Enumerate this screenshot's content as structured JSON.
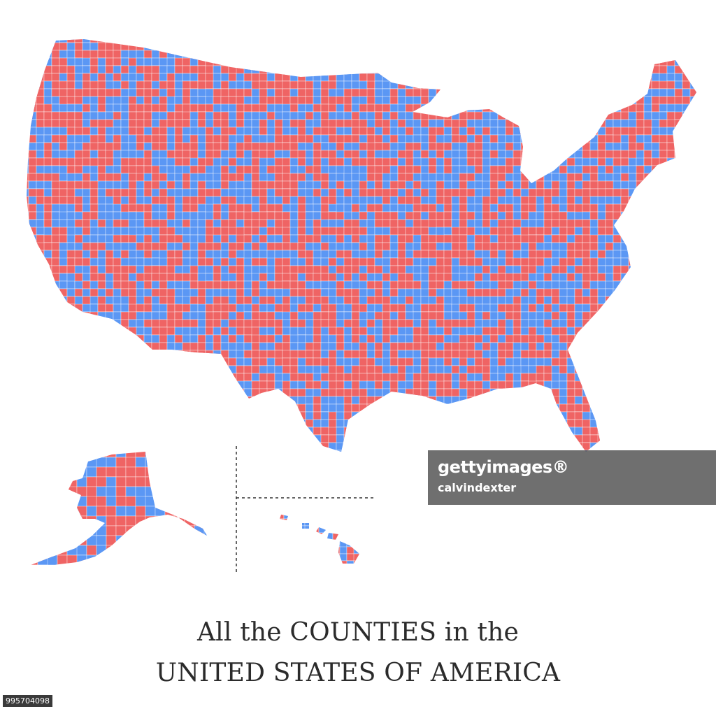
{
  "map": {
    "colors": {
      "red": "#ef6464",
      "blue": "#5b97f4",
      "border": "#ffffff",
      "divider": "#333333"
    },
    "regions": [
      "contiguous-us-counties",
      "alaska-counties",
      "hawaii-counties"
    ]
  },
  "caption": {
    "line1": "All the COUNTIES in the",
    "line2": "UNITED STATES OF AMERICA"
  },
  "watermark": {
    "brand": "gettyimages®",
    "author": "calvindexter"
  },
  "image_id": "995704098"
}
